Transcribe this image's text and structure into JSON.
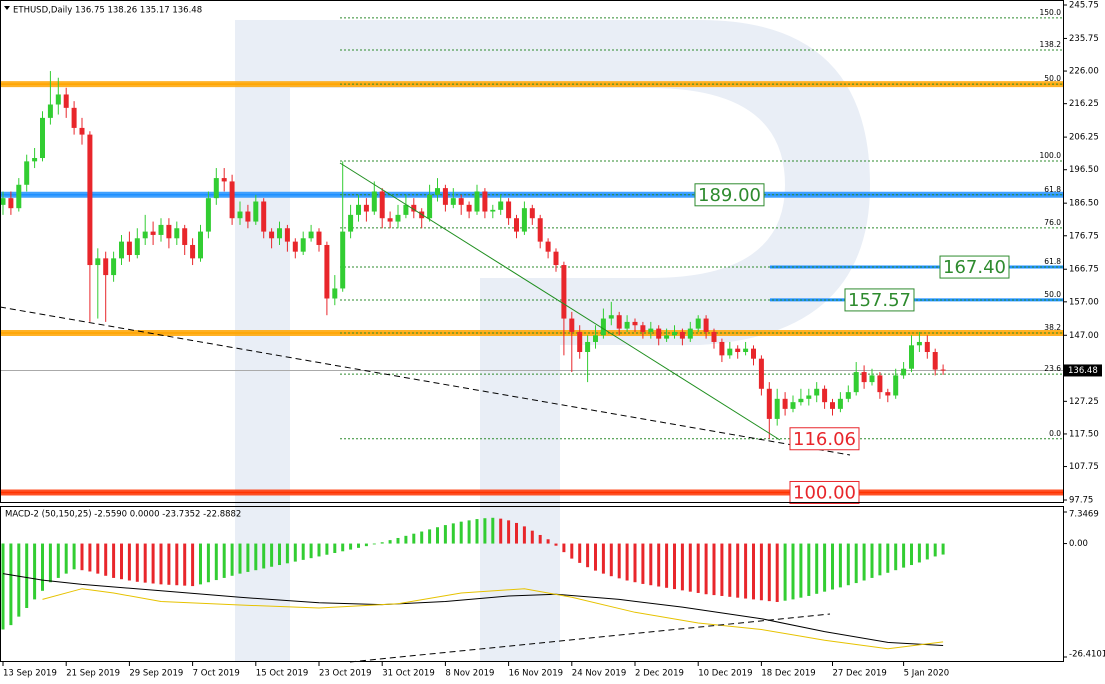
{
  "chart_data": {
    "type": "candlestick",
    "title": "ETHUSD,Daily  136.75 138.26 135.17 136.48",
    "macd_title": "MACD-2 (50,150,25) -2.5590 0.0000 -23.7352 -22.8882",
    "up_color": "#32cd32",
    "down_color": "#e8262b",
    "ylim": [
      97.75,
      245.75
    ],
    "yticks": [
      245.75,
      235.75,
      {
        "value": 226,
        "label": "226.00"
      },
      216.25,
      206.25,
      {
        "value": 196.5,
        "label": "196.50"
      },
      {
        "value": 186.5,
        "label": "186.50"
      },
      176.75,
      166.75,
      {
        "value": 157,
        "label": "157.00"
      },
      {
        "value": 147,
        "label": "147.00"
      },
      127.25,
      {
        "value": 117.5,
        "label": "117.50"
      },
      107.75,
      97.75
    ],
    "xticks": [
      {
        "value": 0,
        "label": "13 Sep 2019"
      },
      {
        "value": 8,
        "label": "21 Sep 2019"
      },
      {
        "value": 16,
        "label": "29 Sep 2019"
      },
      {
        "value": 24,
        "label": "7 Oct 2019"
      },
      {
        "value": 32,
        "label": "15 Oct 2019"
      },
      {
        "value": 40,
        "label": "23 Oct 2019"
      },
      {
        "value": 48,
        "label": "31 Oct 2019"
      },
      {
        "value": 56,
        "label": "8 Nov 2019"
      },
      {
        "value": 64,
        "label": "16 Nov 2019"
      },
      {
        "value": 72,
        "label": "24 Nov 2019"
      },
      {
        "value": 80,
        "label": "2 Dec 2019"
      },
      {
        "value": 88,
        "label": "10 Dec 2019"
      },
      {
        "value": 96,
        "label": "18 Dec 2019"
      },
      {
        "value": 105,
        "label": "27 Dec 2019"
      },
      {
        "value": 114,
        "label": "5 Jan 2020"
      }
    ],
    "last_price": 136.48,
    "candles": [
      [
        186,
        190,
        183,
        188
      ],
      [
        188,
        190,
        183,
        185
      ],
      [
        185,
        194,
        184,
        192
      ],
      [
        192,
        201,
        190,
        199
      ],
      [
        199,
        203,
        197,
        200
      ],
      [
        200,
        214,
        199,
        212
      ],
      [
        212,
        226,
        210,
        216
      ],
      [
        216,
        224,
        213,
        219
      ],
      [
        219,
        221,
        212,
        215
      ],
      [
        215,
        217,
        207,
        209
      ],
      [
        209,
        212,
        204,
        207
      ],
      [
        207,
        208,
        151,
        168
      ],
      [
        168,
        173,
        152,
        170
      ],
      [
        170,
        172,
        151,
        165
      ],
      [
        165,
        172,
        163,
        170
      ],
      [
        170,
        177,
        168,
        175
      ],
      [
        175,
        178,
        169,
        171
      ],
      [
        171,
        179,
        170,
        176
      ],
      [
        176,
        183,
        174,
        178
      ],
      [
        178,
        181,
        174,
        177
      ],
      [
        177,
        182,
        175,
        180
      ],
      [
        180,
        182,
        173,
        176
      ],
      [
        176,
        181,
        174,
        179
      ],
      [
        179,
        180,
        171,
        174
      ],
      [
        174,
        176,
        168,
        170
      ],
      [
        170,
        180,
        169,
        178
      ],
      [
        178,
        190,
        176,
        188
      ],
      [
        188,
        197,
        186,
        194
      ],
      [
        194,
        197,
        190,
        193
      ],
      [
        193,
        195,
        180,
        182
      ],
      [
        182,
        187,
        180,
        184
      ],
      [
        184,
        186,
        179,
        181
      ],
      [
        181,
        189,
        180,
        187
      ],
      [
        187,
        188,
        176,
        178
      ],
      [
        178,
        179,
        173,
        176
      ],
      [
        176,
        181,
        174,
        179
      ],
      [
        179,
        180,
        172,
        175
      ],
      [
        175,
        176,
        170,
        172
      ],
      [
        172,
        178,
        171,
        176
      ],
      [
        176,
        180,
        175,
        178
      ],
      [
        178,
        179,
        172,
        174
      ],
      [
        174,
        175,
        153,
        158
      ],
      [
        158,
        165,
        156,
        161
      ],
      [
        161,
        199,
        160,
        178
      ],
      [
        178,
        186,
        176,
        183
      ],
      [
        183,
        189,
        181,
        186
      ],
      [
        186,
        188,
        181,
        184
      ],
      [
        184,
        193,
        183,
        190
      ],
      [
        190,
        191,
        179,
        182
      ],
      [
        182,
        184,
        179,
        181
      ],
      [
        181,
        186,
        179,
        183
      ],
      [
        183,
        189,
        182,
        186
      ],
      [
        186,
        188,
        182,
        184
      ],
      [
        184,
        185,
        179,
        182
      ],
      [
        182,
        192,
        181,
        189
      ],
      [
        189,
        194,
        187,
        191
      ],
      [
        191,
        192,
        184,
        186
      ],
      [
        186,
        191,
        185,
        188
      ],
      [
        188,
        189,
        183,
        186
      ],
      [
        186,
        187,
        182,
        184
      ],
      [
        184,
        192,
        183,
        190
      ],
      [
        190,
        191,
        182,
        184
      ],
      [
        184,
        186,
        182,
        184.5
      ],
      [
        184.5,
        189,
        183,
        187
      ],
      [
        187,
        188,
        180,
        182
      ],
      [
        182,
        183,
        176,
        178
      ],
      [
        178,
        187,
        177,
        185
      ],
      [
        185,
        186,
        180,
        182
      ],
      [
        182,
        183,
        173,
        175
      ],
      [
        175,
        176,
        170,
        172
      ],
      [
        172,
        173,
        166,
        168
      ],
      [
        168,
        169,
        141,
        152
      ],
      [
        152,
        154,
        136,
        148
      ],
      [
        148,
        150,
        140,
        142
      ],
      [
        142,
        147,
        133,
        145
      ],
      [
        145,
        150,
        143,
        147
      ],
      [
        147,
        155,
        146,
        152
      ],
      [
        152,
        157,
        150,
        153
      ],
      [
        153,
        154,
        147,
        149
      ],
      [
        149,
        153,
        148,
        151
      ],
      [
        151,
        152,
        148,
        150
      ],
      [
        150,
        151,
        146,
        148
      ],
      [
        148,
        151,
        146,
        149
      ],
      [
        149,
        150,
        144,
        146
      ],
      [
        146,
        149,
        145,
        147
      ],
      [
        147,
        150,
        146,
        148
      ],
      [
        148,
        149,
        144,
        146
      ],
      [
        146,
        151,
        145,
        149
      ],
      [
        149,
        153,
        148,
        152
      ],
      [
        152,
        153,
        146,
        148
      ],
      [
        148,
        149,
        143,
        145
      ],
      [
        145,
        146,
        139,
        141
      ],
      [
        141,
        145,
        140,
        143
      ],
      [
        143,
        144,
        140,
        142
      ],
      [
        142,
        145,
        141,
        143
      ],
      [
        143,
        144,
        138,
        140
      ],
      [
        140,
        141,
        129,
        131
      ],
      [
        131,
        133,
        116.06,
        122
      ],
      [
        122,
        131,
        120,
        128
      ],
      [
        128,
        130,
        123,
        125
      ],
      [
        125,
        129,
        124,
        127
      ],
      [
        127,
        131,
        126,
        128
      ],
      [
        128,
        131,
        126,
        129
      ],
      [
        129,
        133,
        127,
        131
      ],
      [
        131,
        132,
        125,
        127
      ],
      [
        127,
        128,
        123,
        125
      ],
      [
        125,
        130,
        124,
        128
      ],
      [
        128,
        132,
        127,
        130
      ],
      [
        130,
        139,
        129,
        136
      ],
      [
        136,
        138,
        131,
        133
      ],
      [
        133,
        137,
        132,
        135
      ],
      [
        135,
        136,
        128,
        130
      ],
      [
        130,
        131,
        127,
        129
      ],
      [
        129,
        137,
        128,
        135
      ],
      [
        135,
        139,
        134,
        137
      ],
      [
        137,
        147,
        136,
        144
      ],
      [
        144,
        148,
        142,
        145
      ],
      [
        145,
        147,
        140,
        142
      ],
      [
        142,
        143,
        135,
        136.75
      ],
      [
        136.75,
        138.26,
        135.17,
        136.48
      ]
    ],
    "bands": [
      {
        "price": 222.1,
        "color": "#ffa500"
      },
      {
        "price": 189,
        "color": "#1e90ff"
      },
      {
        "price": 147.7,
        "color": "#ffa500"
      },
      {
        "price": 100,
        "color": "#ff3300"
      }
    ],
    "short_lines": [
      {
        "price": 167.4,
        "color": "#1e90ff"
      },
      {
        "price": 157.57,
        "color": "#1e90ff"
      }
    ],
    "fib_levels": [
      {
        "label": "150.0",
        "price": 241.9,
        "color": "#2e8b2e"
      },
      {
        "label": "138.2",
        "price": 232.3,
        "color": "#2e8b2e"
      },
      {
        "label": "50.0",
        "price": 222.1,
        "color": "#e8262b"
      },
      {
        "label": "100.0",
        "price": 199.1,
        "color": "#2e8b2e"
      },
      {
        "label": "61.8",
        "price": 189,
        "color": "#e8262b"
      },
      {
        "label": "76.0",
        "price": 179.1,
        "color": "#2e8b2e"
      },
      {
        "label": "61.8",
        "price": 167.4,
        "color": "#2e8b2e"
      },
      {
        "label": "50.0",
        "price": 157.56,
        "color": "#2e8b2e"
      },
      {
        "label": "38.2",
        "price": 147.7,
        "color": "#e8262b"
      },
      {
        "label": "23.6",
        "price": 135.4,
        "color": "#2e8b2e"
      },
      {
        "label": "0.0",
        "price": 116.06,
        "color": "#2e8b2e"
      }
    ],
    "price_boxes": [
      {
        "value": 189,
        "label": "189.00",
        "color": "#2e8b2e"
      },
      {
        "value": 167.4,
        "label": "167.40",
        "color": "#2e8b2e"
      },
      {
        "value": 157.57,
        "label": "157.57",
        "color": "#2e8b2e"
      },
      {
        "value": 116.06,
        "label": "116.06",
        "color": "#e8262b"
      },
      {
        "value": 100,
        "label": "100.00",
        "color": "#e8262b"
      }
    ],
    "macd_ylim": [
      -26.4101,
      7.3469
    ],
    "macd_yticks": [
      7.3469,
      {
        "value": 0,
        "label": "0.00"
      },
      -26.4101
    ],
    "macd_histogram": [
      -20,
      -19,
      -17,
      -15,
      -13,
      -11,
      -9,
      -8,
      -7,
      -6,
      -6.2,
      -6.5,
      -7,
      -7.5,
      -8,
      -8.3,
      -8.6,
      -8.9,
      -9.1,
      -9.3,
      -9.5,
      -9.6,
      -9.7,
      -9.8,
      -9.9,
      -9.5,
      -9,
      -8.5,
      -8,
      -7.5,
      -7,
      -6.6,
      -6.2,
      -5.8,
      -5.4,
      -5,
      -4.6,
      -4.2,
      -3.8,
      -3.4,
      -3,
      -2.6,
      -2.2,
      -1.8,
      -1.4,
      -1,
      -0.6,
      -0.2,
      0.3,
      0.8,
      1.3,
      1.8,
      2.3,
      2.8,
      3.3,
      3.8,
      4.3,
      4.7,
      5.1,
      5.4,
      5.7,
      5.9,
      6.0,
      5.8,
      5.4,
      4.8,
      4,
      3,
      2,
      1,
      -0.5,
      -2,
      -3.5,
      -4.5,
      -5.5,
      -6.3,
      -7,
      -7.6,
      -8.1,
      -8.6,
      -9,
      -9.4,
      -9.7,
      -10,
      -10.3,
      -10.6,
      -10.9,
      -11.2,
      -11.5,
      -11.8,
      -12,
      -12.2,
      -12.4,
      -12.6,
      -12.8,
      -13,
      -13.2,
      -13.4,
      -13.6,
      -13.3,
      -13,
      -12.6,
      -12.2,
      -11.7,
      -11.2,
      -10.7,
      -10.2,
      -9.7,
      -9.2,
      -8.6,
      -8,
      -7.4,
      -6.8,
      -6.2,
      -5.6,
      -5,
      -4.4,
      -3.7,
      -3,
      -2.559
    ],
    "macd_lines": [
      {
        "color": "#000000",
        "x": [
          0,
          5,
          10,
          20,
          30,
          40,
          48,
          56,
          64,
          70,
          78,
          86,
          96,
          104,
          112,
          119
        ],
        "values": [
          -7,
          -8.5,
          -9.5,
          -11,
          -12.5,
          -13.8,
          -14.2,
          -13.5,
          -12.2,
          -11.8,
          -13,
          -14.8,
          -17.5,
          -20.5,
          -23,
          -23.7352
        ]
      },
      {
        "color": "#e6c200",
        "x": [
          5,
          10,
          14,
          20,
          30,
          40,
          50,
          58,
          66,
          72,
          80,
          88,
          96,
          104,
          112,
          119
        ],
        "values": [
          -13,
          -10.5,
          -11.5,
          -13.5,
          -14.3,
          -15,
          -14,
          -11.5,
          -10.5,
          -12.5,
          -16,
          -18.5,
          -20,
          -22.5,
          -24.5,
          -22.8882
        ]
      }
    ]
  }
}
